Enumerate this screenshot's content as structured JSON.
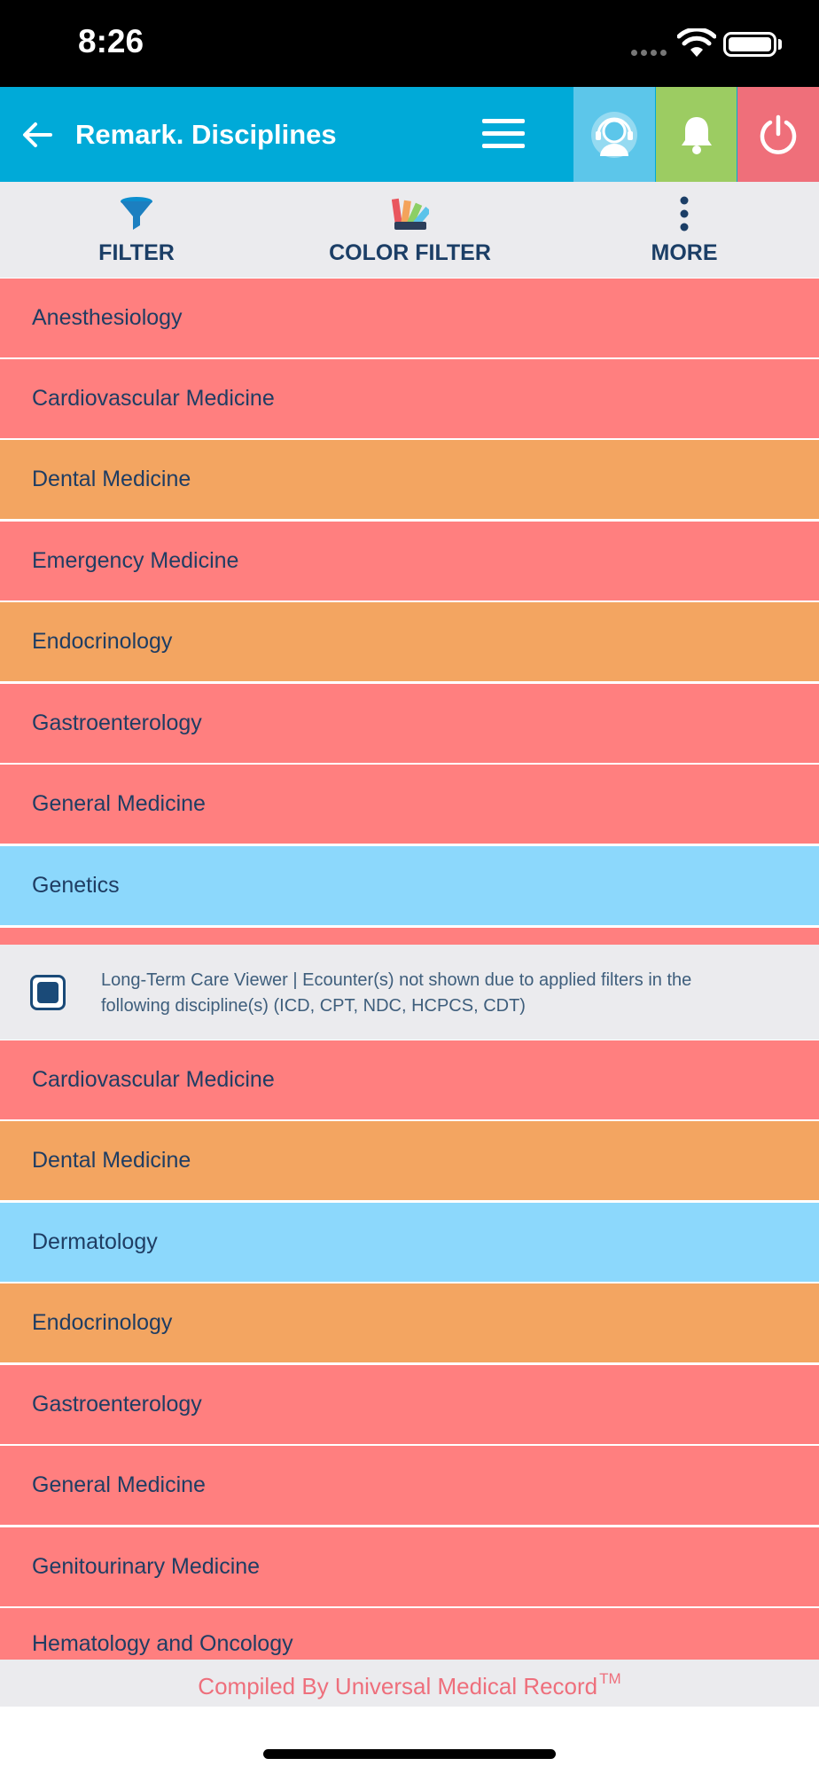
{
  "status_bar": {
    "time": "8:26"
  },
  "header": {
    "title": "Remark. Disciplines",
    "colors": {
      "bar": "#00aad8",
      "support": "#5cc6ea",
      "bell": "#9ccc62",
      "power": "#ef6f7a"
    }
  },
  "toolbar": {
    "filter_label": "FILTER",
    "color_filter_label": "COLOR FILTER",
    "more_label": "MORE"
  },
  "disciplines": [
    {
      "label": "Anesthesiology",
      "color": "red"
    },
    {
      "label": "Cardiovascular Medicine",
      "color": "red"
    },
    {
      "label": "Dental Medicine",
      "color": "orange"
    },
    {
      "label": "Emergency Medicine",
      "color": "red"
    },
    {
      "label": "Endocrinology",
      "color": "orange"
    },
    {
      "label": "Gastroenterology",
      "color": "red"
    },
    {
      "label": "General Medicine",
      "color": "red"
    },
    {
      "label": "Genetics",
      "color": "blue"
    }
  ],
  "viewer": {
    "checked": true,
    "text": "Long-Term Care Viewer | Ecounter(s) not shown due to applied filters in the following discipline(s) (ICD, CPT, NDC, HCPCS, CDT)"
  },
  "filtered_disciplines": [
    {
      "label": "Cardiovascular Medicine",
      "color": "red"
    },
    {
      "label": "Dental Medicine",
      "color": "orange"
    },
    {
      "label": "Dermatology",
      "color": "blue"
    },
    {
      "label": "Endocrinology",
      "color": "orange"
    },
    {
      "label": "Gastroenterology",
      "color": "red"
    },
    {
      "label": "General Medicine",
      "color": "red"
    },
    {
      "label": "Genitourinary Medicine",
      "color": "red"
    },
    {
      "label": "Hematology and Oncology",
      "color": "red"
    }
  ],
  "row_colors": {
    "red": "#ff7f7f",
    "orange": "#f3a561",
    "blue": "#8cd8fc"
  },
  "footer": {
    "text": "Compiled By Universal Medical Record",
    "tm": "TM"
  }
}
